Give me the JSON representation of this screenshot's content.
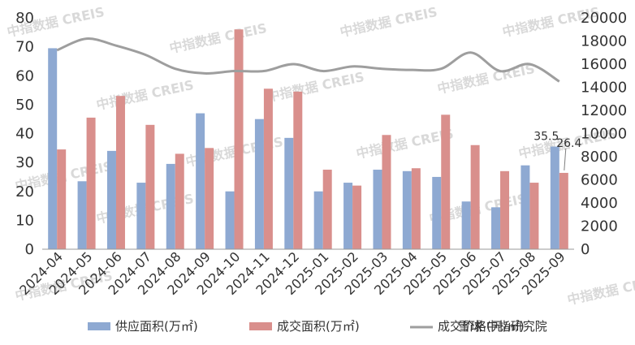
{
  "colors": {
    "supply": "#8EA9D2",
    "sales": "#D98F8C",
    "price": "#9E9E9E",
    "axis": "#999999",
    "watermark": "#d9d9d9"
  },
  "watermark_text": "中指数据 CREIS",
  "source_text": "雪球 中指研究院",
  "chart_data": {
    "type": "bar",
    "categories": [
      "2024-04",
      "2024-05",
      "2024-06",
      "2024-07",
      "2024-08",
      "2024-09",
      "2024-10",
      "2024-11",
      "2024-12",
      "2025-01",
      "2025-02",
      "2025-03",
      "2025-04",
      "2025-05",
      "2025-06",
      "2025-07",
      "2025-08",
      "2025-09"
    ],
    "series": [
      {
        "name": "供应面积(万㎡)",
        "type": "bar",
        "axis": "left",
        "values": [
          69.5,
          23.5,
          34,
          23,
          29.5,
          47,
          20,
          45,
          38.5,
          20,
          23,
          27.5,
          27,
          25,
          16.5,
          14.5,
          29,
          35.5
        ]
      },
      {
        "name": "成交面积(万㎡)",
        "type": "bar",
        "axis": "left",
        "values": [
          34.5,
          45.5,
          53,
          43,
          33,
          35,
          76,
          55.5,
          54.5,
          27.5,
          22,
          39.5,
          28,
          46.5,
          36,
          27,
          23,
          26.4
        ]
      },
      {
        "name": "成交价格(元/㎡)",
        "type": "line",
        "axis": "right",
        "values": [
          17200,
          18200,
          17600,
          16800,
          15600,
          15200,
          15400,
          15400,
          16000,
          15400,
          15800,
          15600,
          15500,
          15600,
          17000,
          15400,
          16000,
          14500
        ]
      }
    ],
    "y_left": {
      "min": 0,
      "max": 80,
      "ticks": [
        "0",
        "10",
        "20",
        "30",
        "40",
        "50",
        "60",
        "70",
        "80"
      ]
    },
    "y_right": {
      "min": 0,
      "max": 20000,
      "ticks": [
        "0",
        "2000",
        "4000",
        "6000",
        "8000",
        "10000",
        "12000",
        "14000",
        "16000",
        "18000",
        "20000"
      ]
    },
    "data_labels": [
      {
        "category": "2025-09",
        "series": "供应面积(万㎡)",
        "text": "35.5"
      },
      {
        "category": "2025-09",
        "series": "成交面积(万㎡)",
        "text": "26.4"
      }
    ],
    "legend_position": "bottom",
    "grid": false
  }
}
